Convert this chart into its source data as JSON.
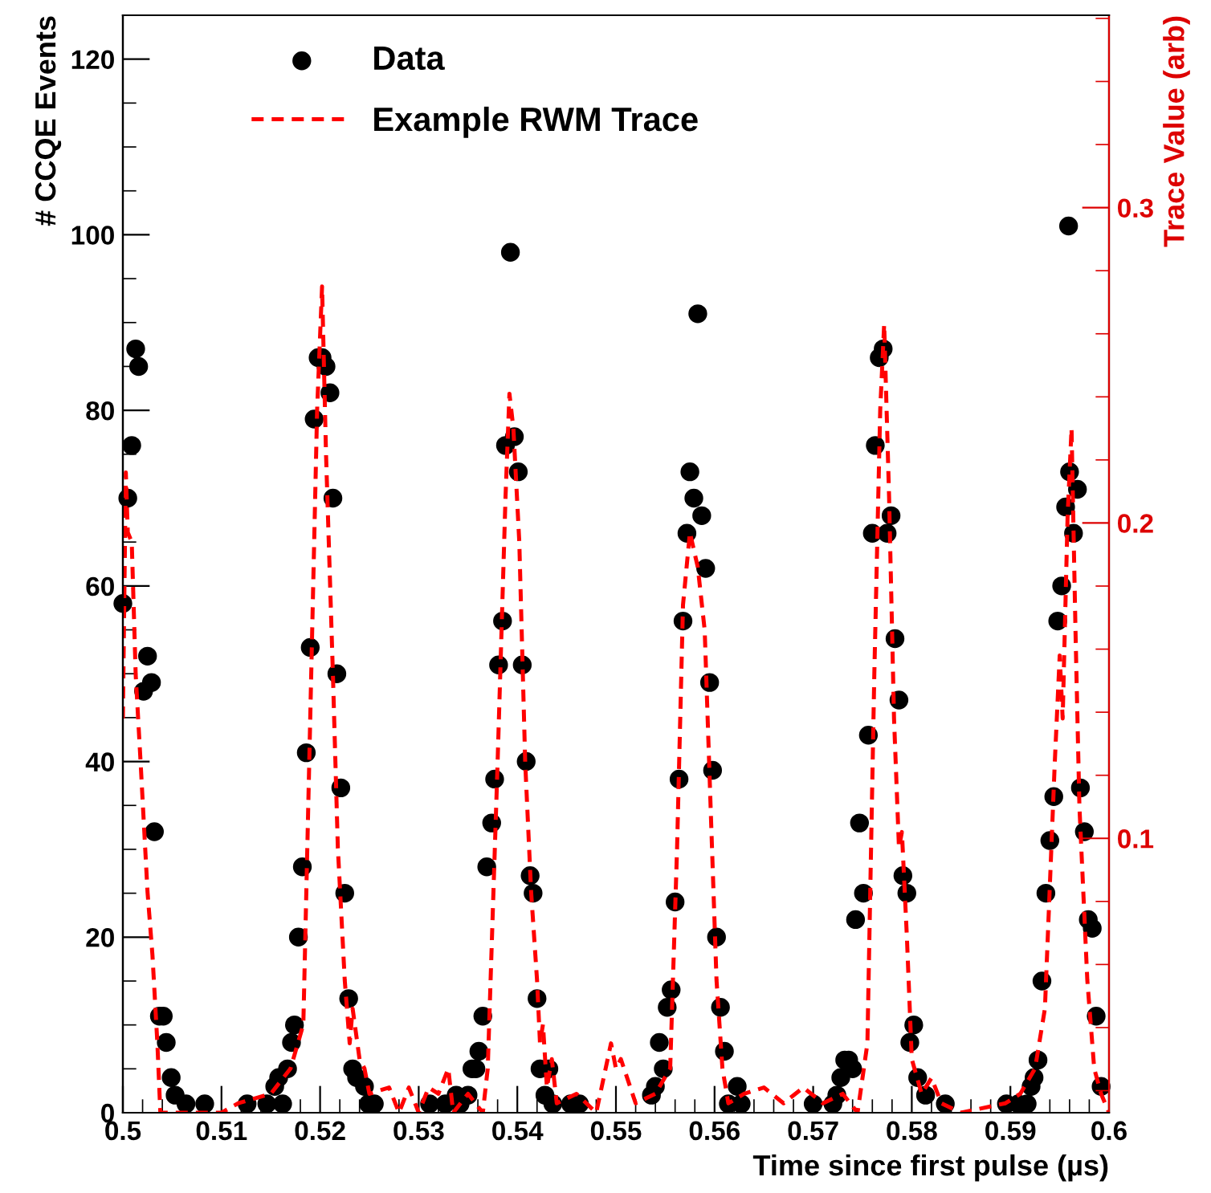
{
  "chart_data": {
    "type": "scatter",
    "xlabel": "Time since first pulse (µs)",
    "ylabel": "# CCQE Events",
    "y2label": "Trace Value (arb)",
    "xlim": [
      0.5,
      0.6
    ],
    "xticks": [
      0.5,
      0.51,
      0.52,
      0.53,
      0.54,
      0.55,
      0.56,
      0.57,
      0.58,
      0.59,
      0.6
    ],
    "ylim": [
      0,
      125
    ],
    "yticks": [
      0,
      20,
      40,
      60,
      80,
      100,
      120
    ],
    "y2lim": [
      0.013,
      0.361
    ],
    "y2ticks": [
      0.1,
      0.2,
      0.3
    ],
    "legend": "top left",
    "grid": false,
    "series": [
      {
        "name": "Data",
        "color": "#000000",
        "marker": "circle",
        "x": [
          0.5,
          0.5005,
          0.5009,
          0.5013,
          0.5016,
          0.5021,
          0.5025,
          0.5029,
          0.5032,
          0.5037,
          0.5041,
          0.5044,
          0.5049,
          0.5053,
          0.5064,
          0.5083,
          0.5126,
          0.5146,
          0.5154,
          0.5158,
          0.5162,
          0.5167,
          0.5171,
          0.5174,
          0.5178,
          0.5182,
          0.5186,
          0.519,
          0.5194,
          0.5198,
          0.5202,
          0.5206,
          0.521,
          0.5213,
          0.5217,
          0.5221,
          0.5225,
          0.5229,
          0.5233,
          0.5237,
          0.5245,
          0.5249,
          0.5255,
          0.5311,
          0.5327,
          0.5338,
          0.5342,
          0.535,
          0.5354,
          0.5358,
          0.5361,
          0.5365,
          0.5369,
          0.5374,
          0.5377,
          0.5381,
          0.5385,
          0.5388,
          0.5393,
          0.5397,
          0.5401,
          0.5405,
          0.5409,
          0.5413,
          0.5416,
          0.542,
          0.5423,
          0.5428,
          0.5432,
          0.5436,
          0.5454,
          0.5463,
          0.5536,
          0.554,
          0.5544,
          0.5548,
          0.5552,
          0.5556,
          0.556,
          0.5564,
          0.5568,
          0.5572,
          0.5575,
          0.5579,
          0.5583,
          0.5587,
          0.5591,
          0.5595,
          0.5598,
          0.5602,
          0.5606,
          0.561,
          0.5614,
          0.5623,
          0.5627,
          0.57,
          0.572,
          0.5724,
          0.5728,
          0.5732,
          0.5736,
          0.574,
          0.5743,
          0.5747,
          0.5751,
          0.5756,
          0.576,
          0.5763,
          0.5767,
          0.5771,
          0.5775,
          0.5779,
          0.5783,
          0.5787,
          0.5791,
          0.5795,
          0.5798,
          0.5802,
          0.5806,
          0.5814,
          0.5834,
          0.5896,
          0.5908,
          0.5917,
          0.5921,
          0.5924,
          0.5928,
          0.5932,
          0.5936,
          0.594,
          0.5944,
          0.5948,
          0.5952,
          0.5956,
          0.5959,
          0.596,
          0.5964,
          0.5968,
          0.5971,
          0.5975,
          0.5979,
          0.5983,
          0.5987,
          0.5992
        ],
        "values": [
          58,
          70,
          76,
          87,
          85,
          48,
          52,
          49,
          32,
          11,
          11,
          8,
          4,
          2,
          1,
          1,
          1,
          1,
          3,
          4,
          1,
          5,
          8,
          10,
          20,
          28,
          41,
          53,
          79,
          86,
          86,
          85,
          82,
          70,
          50,
          37,
          25,
          13,
          5,
          4,
          3,
          1,
          1,
          1,
          1,
          2,
          1,
          2,
          5,
          5,
          7,
          11,
          28,
          33,
          38,
          51,
          56,
          76,
          98,
          77,
          73,
          51,
          40,
          27,
          25,
          13,
          5,
          2,
          5,
          1,
          1,
          1,
          2,
          3,
          8,
          5,
          12,
          14,
          24,
          38,
          56,
          66,
          73,
          70,
          91,
          68,
          62,
          49,
          39,
          20,
          12,
          7,
          1,
          3,
          1,
          1,
          1,
          2,
          4,
          6,
          6,
          5,
          22,
          33,
          25,
          43,
          66,
          76,
          86,
          87,
          66,
          68,
          54,
          47,
          27,
          25,
          8,
          10,
          4,
          2,
          1,
          1,
          1,
          1,
          3,
          4,
          6,
          15,
          25,
          31,
          36,
          56,
          60,
          69,
          101,
          73,
          66,
          71,
          37,
          32,
          22,
          21,
          11,
          3
        ]
      },
      {
        "name": "Example RWM Trace",
        "type": "line",
        "axis": "y2",
        "color": "#ff0000",
        "line_style": "dashed",
        "marker": "none",
        "x": [
          0.5,
          0.5003,
          0.5005,
          0.5009,
          0.5013,
          0.5018,
          0.5025,
          0.503,
          0.5035,
          0.5038,
          0.5045,
          0.51,
          0.5117,
          0.515,
          0.517,
          0.5183,
          0.519,
          0.5197,
          0.5202,
          0.5206,
          0.5213,
          0.5218,
          0.5225,
          0.523,
          0.5233,
          0.524,
          0.5245,
          0.525,
          0.527,
          0.528,
          0.529,
          0.53,
          0.531,
          0.532,
          0.533,
          0.5335,
          0.535,
          0.5365,
          0.537,
          0.538,
          0.5388,
          0.5392,
          0.5396,
          0.5402,
          0.5408,
          0.5414,
          0.542,
          0.5423,
          0.5426,
          0.543,
          0.5435,
          0.544,
          0.546,
          0.548,
          0.5495,
          0.55,
          0.5505,
          0.552,
          0.554,
          0.5555,
          0.5562,
          0.5568,
          0.5575,
          0.5583,
          0.559,
          0.5596,
          0.5602,
          0.5608,
          0.5614,
          0.563,
          0.565,
          0.567,
          0.569,
          0.571,
          0.573,
          0.5745,
          0.5755,
          0.5762,
          0.5768,
          0.5772,
          0.5777,
          0.5782,
          0.5787,
          0.579,
          0.5795,
          0.58,
          0.581,
          0.582,
          0.583,
          0.585,
          0.5895,
          0.591,
          0.5925,
          0.5935,
          0.5945,
          0.595,
          0.5953,
          0.5958,
          0.5962,
          0.5966,
          0.597,
          0.5978,
          0.5985,
          0.5992,
          0.6
        ],
        "values": [
          0.138,
          0.216,
          0.197,
          0.194,
          0.152,
          0.124,
          0.083,
          0.063,
          0.035,
          0.013,
          0.013,
          0.013,
          0.016,
          0.019,
          0.027,
          0.041,
          0.138,
          0.236,
          0.275,
          0.222,
          0.152,
          0.097,
          0.055,
          0.035,
          0.046,
          0.03,
          0.027,
          0.019,
          0.021,
          0.013,
          0.021,
          0.013,
          0.021,
          0.019,
          0.027,
          0.013,
          0.019,
          0.013,
          0.027,
          0.124,
          0.208,
          0.241,
          0.23,
          0.194,
          0.124,
          0.083,
          0.055,
          0.035,
          0.041,
          0.021,
          0.03,
          0.016,
          0.019,
          0.013,
          0.035,
          0.027,
          0.03,
          0.016,
          0.019,
          0.027,
          0.097,
          0.174,
          0.197,
          0.186,
          0.166,
          0.11,
          0.055,
          0.027,
          0.016,
          0.019,
          0.021,
          0.016,
          0.021,
          0.016,
          0.019,
          0.013,
          0.035,
          0.152,
          0.236,
          0.263,
          0.208,
          0.138,
          0.097,
          0.102,
          0.069,
          0.03,
          0.019,
          0.024,
          0.016,
          0.013,
          0.016,
          0.019,
          0.027,
          0.046,
          0.124,
          0.158,
          0.138,
          0.202,
          0.23,
          0.166,
          0.11,
          0.055,
          0.027,
          0.019,
          0.013
        ]
      }
    ]
  }
}
